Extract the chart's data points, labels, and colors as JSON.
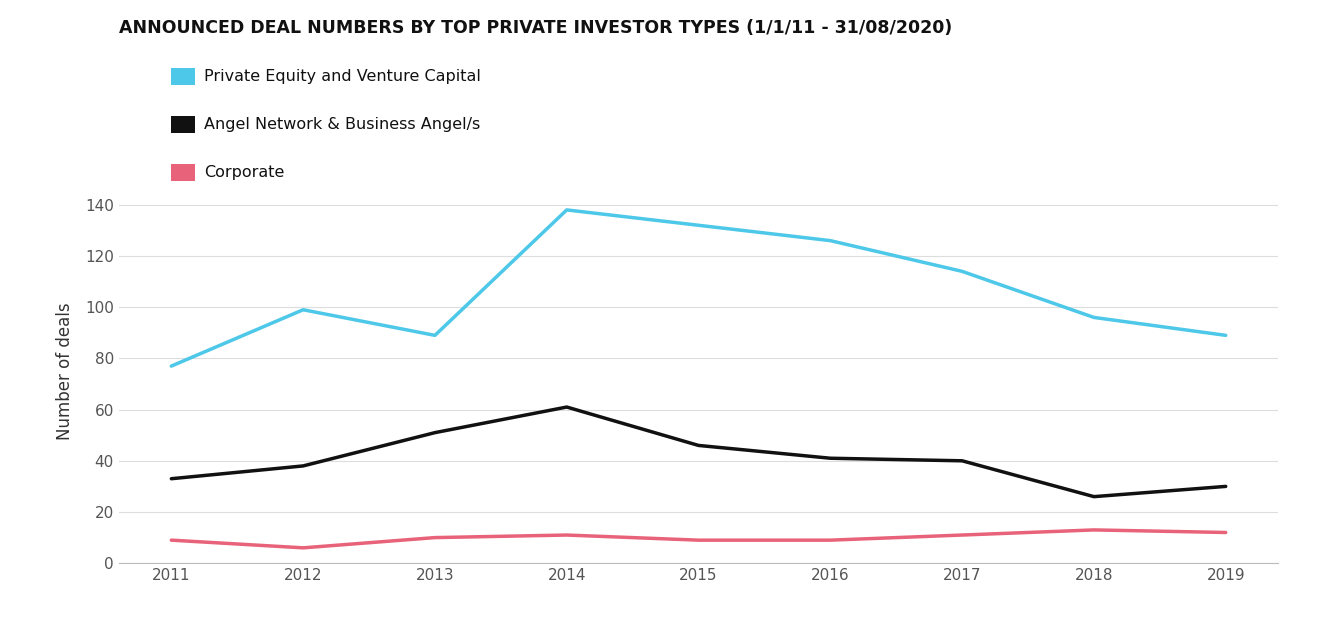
{
  "title": "ANNOUNCED DEAL NUMBERS BY TOP PRIVATE INVESTOR TYPES (1/1/11 - 31/08/2020)",
  "ylabel": "Number of deals",
  "years": [
    2011,
    2012,
    2013,
    2014,
    2015,
    2016,
    2017,
    2018,
    2019
  ],
  "series": [
    {
      "label": "Private Equity and Venture Capital",
      "color": "#4DC8E8",
      "linewidth": 2.5,
      "values": [
        77,
        99,
        89,
        138,
        132,
        126,
        114,
        96,
        89
      ]
    },
    {
      "label": "Angel Network & Business Angel/s",
      "color": "#111111",
      "linewidth": 2.5,
      "values": [
        33,
        38,
        51,
        61,
        46,
        41,
        40,
        26,
        30
      ]
    },
    {
      "label": "Corporate",
      "color": "#E8627A",
      "linewidth": 2.5,
      "values": [
        9,
        6,
        10,
        11,
        9,
        9,
        11,
        13,
        12
      ]
    }
  ],
  "ylim": [
    0,
    150
  ],
  "yticks": [
    0,
    20,
    40,
    60,
    80,
    100,
    120,
    140
  ],
  "background_color": "#ffffff",
  "title_fontsize": 12.5,
  "axis_label_fontsize": 12,
  "tick_fontsize": 11,
  "legend_fontsize": 11.5
}
